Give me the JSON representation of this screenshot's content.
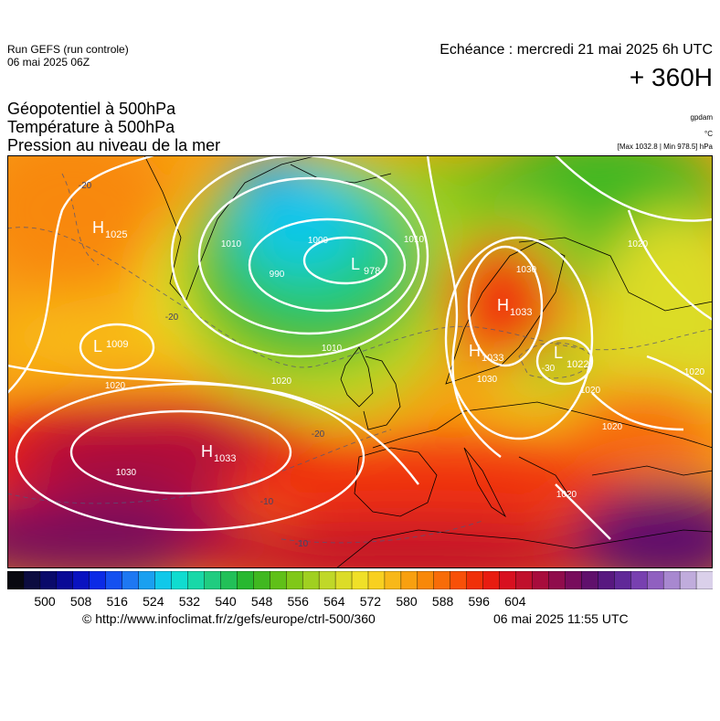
{
  "header": {
    "run": "Run GEFS (run controle)",
    "run_date": "06 mai 2025 06Z",
    "echeance": "Echéance : mercredi 21 mai 2025 6h UTC",
    "lead": "+ 360H",
    "titles": [
      "Géopotentiel à 500hPa",
      "Température à 500hPa",
      "Pression au niveau de la mer"
    ],
    "unit_gpdam": "gpdam",
    "unit_c": "°C",
    "maxmin": "[Max 1032.8 | Min 978.5] hPa"
  },
  "map": {
    "centers": [
      {
        "type": "H",
        "value": "1025"
      },
      {
        "type": "H",
        "value": "1033"
      },
      {
        "type": "H",
        "value": "1033"
      },
      {
        "type": "H",
        "value": "1033"
      },
      {
        "type": "L",
        "value": "978"
      },
      {
        "type": "L",
        "value": "1009"
      },
      {
        "type": "L",
        "value": "1022"
      }
    ],
    "isobar_labels": [
      "1000",
      "990",
      "1010",
      "1010",
      "1010",
      "1020",
      "1020",
      "1020",
      "1020",
      "1020",
      "1030",
      "1030",
      "1030",
      "1020",
      "1020"
    ],
    "isotherm_labels": [
      "-20",
      "-20",
      "-30",
      "-20",
      "-10",
      "-10"
    ]
  },
  "colorbar": {
    "colors": [
      "#080810",
      "#0c0c40",
      "#0a0a6a",
      "#0a0a96",
      "#0a12c0",
      "#0b2ae6",
      "#1450f0",
      "#1e78f2",
      "#1aa0f0",
      "#10c8ea",
      "#10dcd0",
      "#18d8a8",
      "#20cc80",
      "#22c058",
      "#28b830",
      "#40b820",
      "#60c018",
      "#80c818",
      "#a0d020",
      "#c0d828",
      "#dcdc28",
      "#f0e028",
      "#f8d020",
      "#f8b818",
      "#f8a010",
      "#f88808",
      "#f86c08",
      "#f85008",
      "#f03008",
      "#e81c10",
      "#d81020",
      "#c0102c",
      "#a80c3c",
      "#900c4c",
      "#780c5c",
      "#60106c",
      "#581880",
      "#602898",
      "#7840b0",
      "#9060c0",
      "#a888d0",
      "#c0acdc",
      "#dad0ea"
    ],
    "ticks": [
      "500",
      "508",
      "516",
      "524",
      "532",
      "540",
      "548",
      "556",
      "564",
      "572",
      "580",
      "588",
      "596",
      "604"
    ]
  },
  "footer": {
    "url": "© http://www.infoclimat.fr/z/gefs/europe/ctrl-500/360",
    "date": "06 mai 2025 11:55 UTC"
  }
}
